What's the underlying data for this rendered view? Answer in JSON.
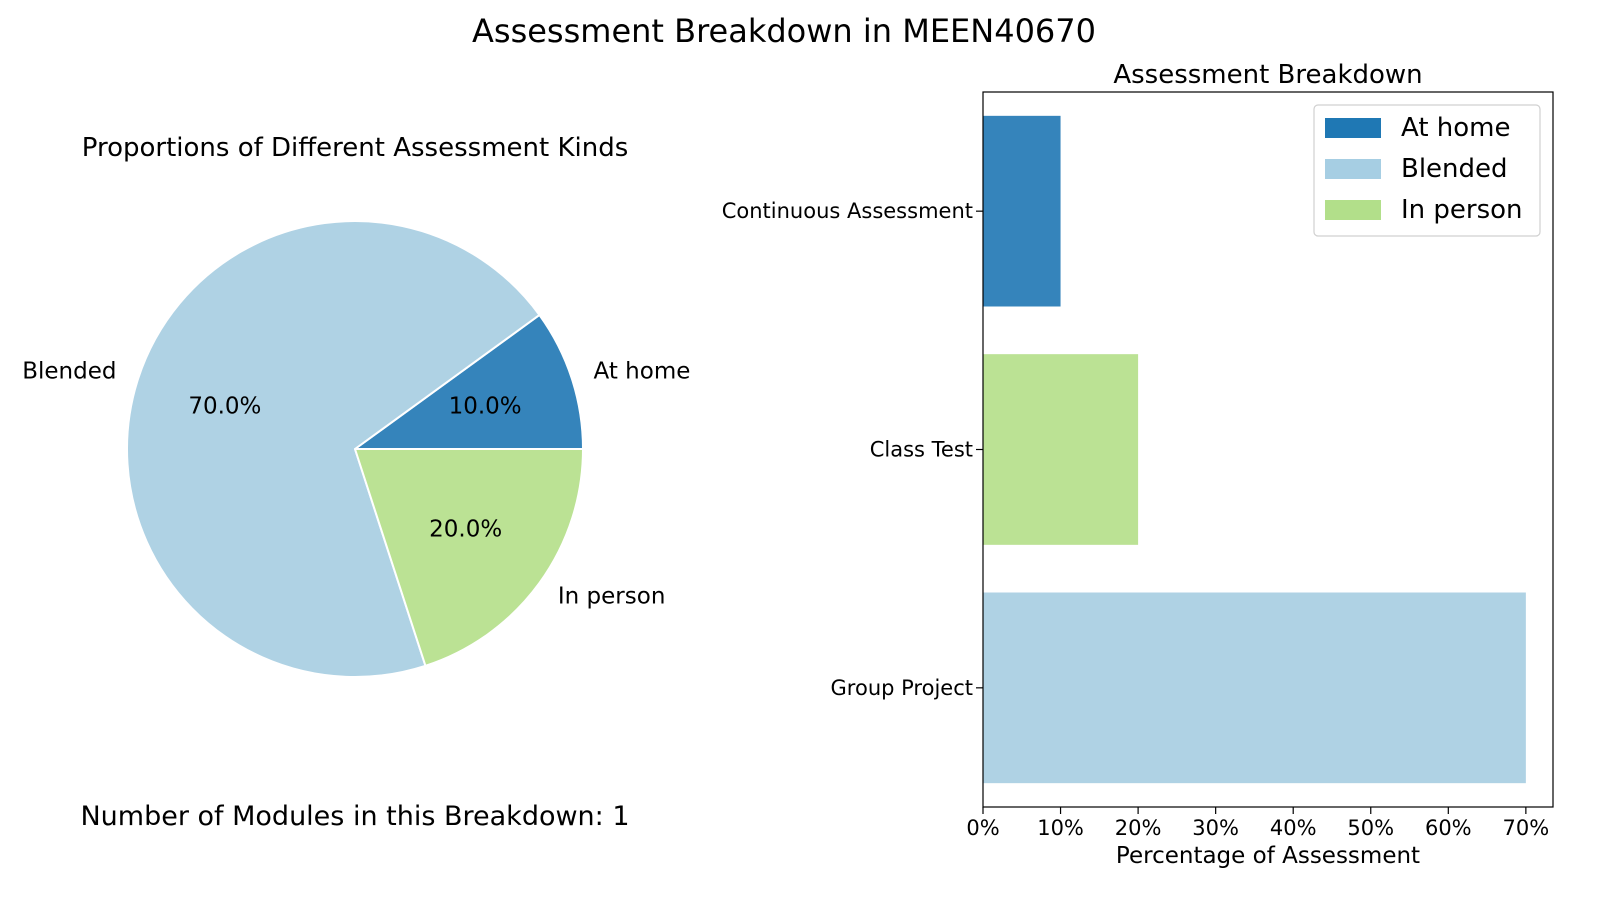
{
  "figure": {
    "suptitle": "Assessment Breakdown in MEEN40670",
    "footnote": "Number of Modules in this Breakdown: 1"
  },
  "chart_data": [
    {
      "type": "pie",
      "title": "Proportions of Different Assessment Kinds",
      "slices": [
        {
          "label": "At home",
          "value": 10.0,
          "pct_label": "10.0%",
          "color": "#3584bb"
        },
        {
          "label": "Blended",
          "value": 70.0,
          "pct_label": "70.0%",
          "color": "#afd2e4"
        },
        {
          "label": "In person",
          "value": 20.0,
          "pct_label": "20.0%",
          "color": "#bbe294"
        }
      ],
      "start_angle_deg": 0,
      "direction": "counterclockwise"
    },
    {
      "type": "bar",
      "orientation": "horizontal",
      "title": "Assessment Breakdown",
      "xlabel": "Percentage of Assessment",
      "ylabel": "",
      "xlim": [
        0,
        73.5
      ],
      "xticks": [
        0,
        10,
        20,
        30,
        40,
        50,
        60,
        70
      ],
      "xtick_labels": [
        "0%",
        "10%",
        "20%",
        "30%",
        "40%",
        "50%",
        "60%",
        "70%"
      ],
      "categories": [
        "Continuous Assessment",
        "Class Test",
        "Group Project"
      ],
      "bars": [
        {
          "category": "Continuous Assessment",
          "value": 10,
          "kind": "At home",
          "color": "#3584bb"
        },
        {
          "category": "Class Test",
          "value": 20,
          "kind": "In person",
          "color": "#bbe294"
        },
        {
          "category": "Group Project",
          "value": 70,
          "kind": "Blended",
          "color": "#afd2e4"
        }
      ],
      "legend": {
        "placement": "upper right",
        "entries": [
          {
            "label": "At home",
            "color": "#1f78b4"
          },
          {
            "label": "Blended",
            "color": "#a6cee3"
          },
          {
            "label": "In person",
            "color": "#b2df8a"
          }
        ]
      },
      "grid": false
    }
  ]
}
